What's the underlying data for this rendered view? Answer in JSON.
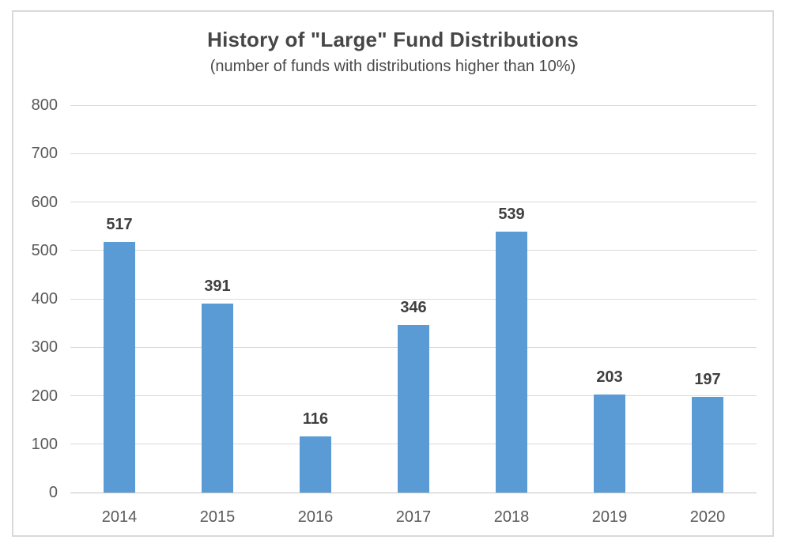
{
  "chart": {
    "title": "History of \"Large\" Fund Distributions",
    "subtitle": "(number of funds with distributions higher than 10%)"
  },
  "chart_data": {
    "type": "bar",
    "categories": [
      "2014",
      "2015",
      "2016",
      "2017",
      "2018",
      "2019",
      "2020"
    ],
    "values": [
      517,
      391,
      116,
      346,
      539,
      203,
      197
    ],
    "title": "History of \"Large\" Fund Distributions",
    "subtitle": "(number of funds with distributions higher than 10%)",
    "xlabel": "",
    "ylabel": "",
    "ylim": [
      0,
      800
    ],
    "ytick_step": 100,
    "ytick_labels": [
      "0",
      "100",
      "200",
      "300",
      "400",
      "500",
      "600",
      "700",
      "800"
    ],
    "grid": true,
    "legend": false,
    "data_labels": true,
    "bar_color": "#5B9BD5",
    "value_label_color": "#3f3f3f",
    "axis_text_color": "#595959",
    "gridline_color": "#dadada",
    "frame_border_color": "#d9d9d9"
  }
}
